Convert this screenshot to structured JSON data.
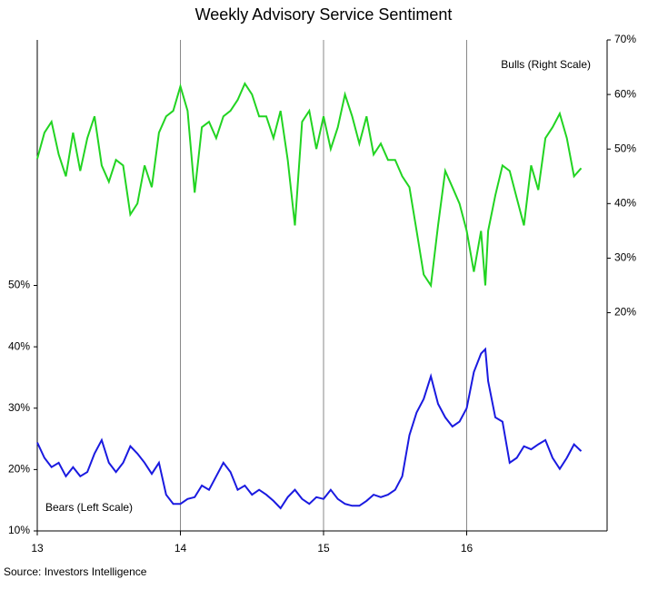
{
  "chart_data": {
    "type": "line",
    "title": "Weekly Advisory Service Sentiment",
    "source": "Source: Investors Intelligence",
    "x": [
      13.0,
      13.05,
      13.1,
      13.15,
      13.2,
      13.25,
      13.3,
      13.35,
      13.4,
      13.45,
      13.5,
      13.55,
      13.6,
      13.65,
      13.7,
      13.75,
      13.8,
      13.85,
      13.9,
      13.95,
      14.0,
      14.05,
      14.1,
      14.15,
      14.2,
      14.25,
      14.3,
      14.35,
      14.4,
      14.45,
      14.5,
      14.55,
      14.6,
      14.65,
      14.7,
      14.75,
      14.8,
      14.85,
      14.9,
      14.95,
      15.0,
      15.05,
      15.1,
      15.15,
      15.2,
      15.25,
      15.3,
      15.35,
      15.4,
      15.45,
      15.5,
      15.55,
      15.6,
      15.65,
      15.7,
      15.75,
      15.8,
      15.85,
      15.9,
      15.95,
      16.0,
      16.05,
      16.1,
      16.13,
      16.15,
      16.2,
      16.25,
      16.3,
      16.35,
      16.4,
      16.45,
      16.5,
      16.55,
      16.6,
      16.65,
      16.7,
      16.75,
      16.8
    ],
    "series": [
      {
        "name": "Bulls (Right Scale)",
        "color": "#22d422",
        "axis": "y2",
        "values": [
          48.2,
          53,
          55,
          49,
          45,
          53,
          46,
          52,
          56,
          47,
          44,
          48,
          47,
          38,
          40,
          47,
          43,
          53,
          56,
          57,
          61.5,
          57,
          42,
          54,
          55,
          52,
          56,
          57,
          59,
          62,
          60,
          56,
          56,
          52,
          57,
          48,
          36,
          55,
          57,
          50,
          56,
          50,
          54,
          60,
          56,
          51,
          56,
          49,
          51,
          48,
          48,
          45,
          43,
          35,
          27,
          25,
          36,
          46,
          43,
          40,
          35,
          27.5,
          35,
          25,
          35,
          41.5,
          47,
          46,
          41,
          36,
          47,
          42.5,
          52,
          54,
          56.5,
          52,
          45,
          46.5
        ]
      },
      {
        "name": "Bears (Left Scale)",
        "color": "#1a1ae0",
        "values": [
          24.4,
          21.9,
          20.4,
          21.1,
          18.9,
          20.4,
          18.9,
          19.6,
          22.6,
          24.8,
          21.1,
          19.6,
          21.1,
          23.8,
          22.6,
          21.1,
          19.3,
          21.1,
          15.9,
          14.4,
          14.4,
          15.2,
          15.5,
          17.4,
          16.7,
          18.9,
          21.1,
          19.6,
          16.7,
          17.4,
          15.9,
          16.7,
          15.9,
          14.9,
          13.7,
          15.5,
          16.7,
          15.2,
          14.4,
          15.5,
          15.2,
          16.7,
          15.2,
          14.4,
          14.1,
          14.1,
          14.9,
          15.9,
          15.5,
          15.9,
          16.7,
          18.9,
          25.6,
          29.3,
          31.5,
          35.2,
          30.7,
          28.5,
          27,
          27.8,
          30,
          35.9,
          38.9,
          39.6,
          34.4,
          28.5,
          27.8,
          21.1,
          21.9,
          23.8,
          23.3,
          24.1,
          24.8,
          21.9,
          20.1,
          21.9,
          24.1,
          23
        ]
      }
    ],
    "xlim": [
      13,
      17
    ],
    "xticks": [
      13,
      14,
      15,
      16
    ],
    "ylim": [
      10,
      90
    ],
    "yticks": [
      {
        "value": 10,
        "label": "10%"
      },
      {
        "value": 20,
        "label": "20%"
      },
      {
        "value": 30,
        "label": "30%"
      },
      {
        "value": 40,
        "label": "40%"
      },
      {
        "value": 50,
        "label": "50%"
      }
    ],
    "y2lim": [
      -20,
      70
    ],
    "y2ticks": [
      {
        "value": 20,
        "label": "20%"
      },
      {
        "value": 30,
        "label": "30%"
      },
      {
        "value": 40,
        "label": "40%"
      },
      {
        "value": 50,
        "label": "50%"
      },
      {
        "value": 60,
        "label": "60%"
      },
      {
        "value": 70,
        "label": "70%"
      }
    ],
    "grid": true
  }
}
